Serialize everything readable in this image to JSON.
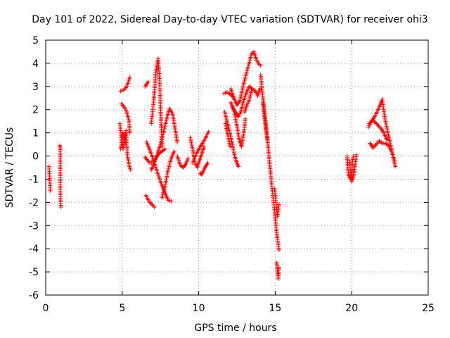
{
  "chart_data": {
    "type": "scatter",
    "title": "Day 101 of 2022, Sidereal Day-to-day VTEC variation (SDTVAR) for receiver ohi3",
    "xlabel": "GPS time / hours",
    "ylabel": "SDTVAR / TECUs",
    "xlim": [
      0,
      25
    ],
    "ylim": [
      -6,
      5
    ],
    "xticks": [
      0,
      5,
      10,
      15,
      20,
      25
    ],
    "yticks": [
      -6,
      -5,
      -4,
      -3,
      -2,
      -1,
      0,
      1,
      2,
      3,
      4,
      5
    ],
    "grid": true,
    "marker": "+",
    "color": "#ff0000",
    "tracks": [
      {
        "points": [
          [
            0.22,
            -0.45
          ],
          [
            0.28,
            -1.2
          ],
          [
            0.3,
            -1.5
          ]
        ]
      },
      {
        "points": [
          [
            0.92,
            0.45
          ],
          [
            0.95,
            0.35
          ],
          [
            0.95,
            -1.45
          ],
          [
            0.98,
            -2.05
          ],
          [
            1.0,
            -2.2
          ]
        ]
      },
      {
        "points": [
          [
            4.9,
            2.8
          ],
          [
            5.1,
            2.85
          ],
          [
            5.3,
            3.0
          ],
          [
            5.5,
            3.4
          ]
        ]
      },
      {
        "points": [
          [
            4.95,
            2.25
          ],
          [
            5.15,
            2.1
          ],
          [
            5.3,
            1.9
          ],
          [
            5.45,
            1.5
          ],
          [
            5.5,
            1.0
          ]
        ]
      },
      {
        "points": [
          [
            4.85,
            1.4
          ],
          [
            4.95,
            0.8
          ],
          [
            5.05,
            0.3
          ],
          [
            5.15,
            0.7
          ],
          [
            5.25,
            1.1
          ],
          [
            5.35,
            0.0
          ],
          [
            5.45,
            -0.4
          ],
          [
            5.55,
            -0.6
          ]
        ]
      },
      {
        "points": [
          [
            4.9,
            0.3
          ],
          [
            5.05,
            1.0
          ],
          [
            5.2,
            0.5
          ]
        ]
      },
      {
        "points": [
          [
            6.5,
            3.0
          ],
          [
            6.6,
            3.1
          ],
          [
            6.7,
            3.2
          ]
        ]
      },
      {
        "points": [
          [
            6.9,
            1.4
          ],
          [
            7.05,
            2.3
          ],
          [
            7.2,
            3.6
          ],
          [
            7.35,
            4.2
          ],
          [
            7.45,
            3.2
          ],
          [
            7.55,
            1.3
          ],
          [
            7.62,
            0.4
          ]
        ]
      },
      {
        "points": [
          [
            6.5,
            -0.05
          ],
          [
            6.8,
            -0.3
          ],
          [
            7.0,
            -0.3
          ],
          [
            7.2,
            -0.1
          ],
          [
            7.4,
            0.1
          ],
          [
            7.6,
            0.2
          ],
          [
            7.8,
            0.3
          ]
        ]
      },
      {
        "points": [
          [
            6.55,
            -1.7
          ],
          [
            6.75,
            -1.95
          ],
          [
            6.95,
            -2.1
          ],
          [
            7.1,
            -2.2
          ]
        ]
      },
      {
        "points": [
          [
            6.6,
            0.6
          ],
          [
            6.9,
            0.1
          ],
          [
            7.2,
            -0.5
          ],
          [
            7.5,
            -1.1
          ],
          [
            7.8,
            -1.6
          ],
          [
            8.0,
            -1.9
          ],
          [
            8.2,
            -1.95
          ]
        ]
      },
      {
        "points": [
          [
            6.9,
            -0.6
          ],
          [
            7.1,
            -0.3
          ],
          [
            7.3,
            0.1
          ],
          [
            7.5,
            0.5
          ],
          [
            7.7,
            1.0
          ],
          [
            7.9,
            1.6
          ],
          [
            8.1,
            2.05
          ],
          [
            8.3,
            1.8
          ],
          [
            8.45,
            1.2
          ],
          [
            8.6,
            0.6
          ]
        ]
      },
      {
        "points": [
          [
            7.6,
            -1.8
          ],
          [
            7.8,
            -1.3
          ],
          [
            8.0,
            -0.6
          ],
          [
            8.2,
            -0.1
          ],
          [
            8.4,
            0.2
          ]
        ]
      },
      {
        "points": [
          [
            8.6,
            0.0
          ],
          [
            8.8,
            -0.4
          ],
          [
            9.0,
            -0.5
          ],
          [
            9.2,
            -0.3
          ],
          [
            9.3,
            -0.1
          ]
        ]
      },
      {
        "points": [
          [
            9.45,
            0.8
          ],
          [
            9.6,
            0.3
          ],
          [
            9.75,
            -0.3
          ],
          [
            9.9,
            -0.5
          ],
          [
            10.05,
            -0.2
          ],
          [
            10.2,
            0.1
          ],
          [
            10.35,
            0.4
          ]
        ]
      },
      {
        "points": [
          [
            9.6,
            -0.3
          ],
          [
            9.85,
            0.1
          ],
          [
            10.1,
            0.4
          ],
          [
            10.3,
            0.6
          ],
          [
            10.5,
            0.85
          ],
          [
            10.65,
            1.05
          ]
        ]
      },
      {
        "points": [
          [
            10.1,
            -0.75
          ],
          [
            10.2,
            -0.8
          ],
          [
            10.4,
            -0.5
          ],
          [
            10.6,
            -0.3
          ]
        ]
      },
      {
        "points": [
          [
            11.65,
            2.7
          ],
          [
            11.85,
            2.75
          ],
          [
            12.1,
            2.65
          ],
          [
            12.3,
            2.5
          ]
        ]
      },
      {
        "points": [
          [
            11.7,
            1.9
          ],
          [
            11.85,
            1.5
          ],
          [
            12.0,
            1.1
          ],
          [
            12.2,
            0.5
          ],
          [
            12.35,
            0.0
          ],
          [
            12.5,
            -0.3
          ],
          [
            12.6,
            -0.45
          ]
        ]
      },
      {
        "points": [
          [
            11.75,
            1.4
          ],
          [
            11.9,
            0.9
          ],
          [
            12.05,
            0.4
          ]
        ]
      },
      {
        "points": [
          [
            12.1,
            2.3
          ],
          [
            12.3,
            2.0
          ],
          [
            12.5,
            1.3
          ],
          [
            12.65,
            0.7
          ],
          [
            12.8,
            0.4
          ],
          [
            12.95,
            1.0
          ],
          [
            13.05,
            1.6
          ]
        ]
      },
      {
        "points": [
          [
            12.1,
            2.9
          ],
          [
            12.3,
            2.5
          ],
          [
            12.5,
            2.2
          ],
          [
            12.7,
            2.4
          ],
          [
            12.9,
            3.0
          ],
          [
            13.05,
            3.4
          ],
          [
            13.25,
            3.9
          ],
          [
            13.45,
            4.4
          ],
          [
            13.6,
            4.5
          ],
          [
            13.75,
            4.2
          ],
          [
            13.9,
            4.0
          ],
          [
            14.05,
            3.9
          ]
        ]
      },
      {
        "points": [
          [
            12.2,
            2.1
          ],
          [
            12.4,
            1.9
          ],
          [
            12.6,
            1.7
          ],
          [
            12.75,
            1.9
          ],
          [
            12.9,
            2.3
          ],
          [
            13.1,
            2.7
          ],
          [
            13.3,
            3.0
          ],
          [
            13.5,
            2.9
          ],
          [
            13.7,
            2.8
          ],
          [
            13.85,
            2.6
          ],
          [
            14.0,
            2.9
          ]
        ]
      },
      {
        "points": [
          [
            13.0,
            1.9
          ],
          [
            13.15,
            2.2
          ],
          [
            13.3,
            2.4
          ],
          [
            13.45,
            2.8
          ]
        ]
      },
      {
        "points": [
          [
            14.05,
            3.5
          ],
          [
            14.15,
            2.8
          ],
          [
            14.25,
            2.2
          ],
          [
            14.35,
            1.6
          ],
          [
            14.45,
            1.0
          ],
          [
            14.55,
            0.3
          ],
          [
            14.65,
            -0.4
          ],
          [
            14.75,
            -1.1
          ],
          [
            14.85,
            -1.7
          ],
          [
            14.95,
            -2.3
          ],
          [
            15.05,
            -3.0
          ],
          [
            15.15,
            -3.6
          ],
          [
            15.25,
            -4.05
          ]
        ]
      },
      {
        "points": [
          [
            14.2,
            2.3
          ],
          [
            14.35,
            1.4
          ],
          [
            14.5,
            0.7
          ]
        ]
      },
      {
        "points": [
          [
            14.95,
            -1.4
          ],
          [
            15.05,
            -2.0
          ],
          [
            15.15,
            -2.6
          ],
          [
            15.25,
            -2.1
          ]
        ]
      },
      {
        "points": [
          [
            15.1,
            -4.6
          ],
          [
            15.15,
            -5.0
          ],
          [
            15.2,
            -5.3
          ],
          [
            15.25,
            -4.8
          ]
        ]
      },
      {
        "points": [
          [
            19.7,
            0.0
          ],
          [
            19.75,
            -0.5
          ],
          [
            19.8,
            -0.85
          ],
          [
            19.95,
            -1.0
          ],
          [
            20.0,
            -0.7
          ],
          [
            20.05,
            -0.3
          ],
          [
            20.1,
            0.0
          ]
        ]
      },
      {
        "points": [
          [
            19.85,
            -0.2
          ],
          [
            20.0,
            -1.1
          ],
          [
            20.15,
            -0.8
          ],
          [
            20.3,
            0.05
          ]
        ]
      },
      {
        "points": [
          [
            21.1,
            1.25
          ],
          [
            21.3,
            1.5
          ],
          [
            21.5,
            1.7
          ],
          [
            21.7,
            1.95
          ],
          [
            21.85,
            2.2
          ],
          [
            22.0,
            2.45
          ],
          [
            22.15,
            1.7
          ],
          [
            22.3,
            1.2
          ],
          [
            22.5,
            0.6
          ],
          [
            22.7,
            0.0
          ],
          [
            22.85,
            -0.45
          ]
        ]
      },
      {
        "points": [
          [
            21.2,
            0.55
          ],
          [
            21.4,
            0.35
          ],
          [
            21.6,
            0.5
          ],
          [
            21.8,
            0.65
          ],
          [
            22.0,
            0.55
          ],
          [
            22.2,
            0.55
          ],
          [
            22.4,
            0.45
          ],
          [
            22.6,
            0.2
          ],
          [
            22.8,
            -0.2
          ]
        ]
      },
      {
        "points": [
          [
            21.15,
            1.4
          ],
          [
            21.35,
            1.55
          ],
          [
            21.55,
            1.45
          ],
          [
            21.75,
            1.3
          ],
          [
            21.9,
            1.2
          ],
          [
            22.1,
            1.0
          ],
          [
            22.3,
            0.7
          ]
        ]
      }
    ]
  }
}
